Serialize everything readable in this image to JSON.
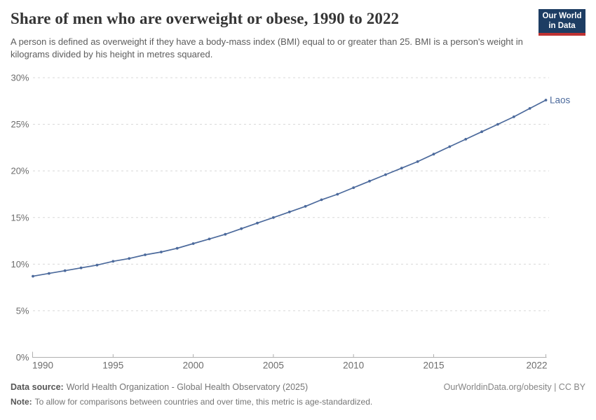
{
  "header": {
    "title": "Share of men who are overweight or obese, 1990 to 2022",
    "subtitle": "A person is defined as overweight if they have a body-mass index (BMI) equal to or greater than 25. BMI is a person's weight in kilograms divided by his height in metres squared."
  },
  "logo": {
    "line1": "Our World",
    "line2": "in Data",
    "bg_color": "#1d3d63",
    "bar_color": "#be3232"
  },
  "chart_data": {
    "type": "line",
    "title": "Share of men who are overweight or obese, 1990 to 2022",
    "xlabel": "",
    "ylabel": "",
    "unit": "%",
    "xlim": [
      1990,
      2022
    ],
    "ylim": [
      0,
      30
    ],
    "grid": "horizontal-dashed",
    "legend_position": "end-of-line-label",
    "x_ticks": [
      1990,
      1995,
      2000,
      2005,
      2010,
      2015,
      2022
    ],
    "y_ticks": [
      0,
      5,
      10,
      15,
      20,
      25,
      30
    ],
    "y_tick_suffix": "%",
    "x": [
      1990,
      1991,
      1992,
      1993,
      1994,
      1995,
      1996,
      1997,
      1998,
      1999,
      2000,
      2001,
      2002,
      2003,
      2004,
      2005,
      2006,
      2007,
      2008,
      2009,
      2010,
      2011,
      2012,
      2013,
      2014,
      2015,
      2016,
      2017,
      2018,
      2019,
      2020,
      2021,
      2022
    ],
    "series": [
      {
        "name": "Laos",
        "color": "#4c6a9c",
        "values": [
          8.7,
          9.0,
          9.3,
          9.6,
          9.9,
          10.3,
          10.6,
          11.0,
          11.3,
          11.7,
          12.2,
          12.7,
          13.2,
          13.8,
          14.4,
          15.0,
          15.6,
          16.2,
          16.9,
          17.5,
          18.2,
          18.9,
          19.6,
          20.3,
          21.0,
          21.8,
          22.6,
          23.4,
          24.2,
          25.0,
          25.8,
          26.7,
          27.6
        ]
      }
    ],
    "grid_color": "#d8d8d8",
    "axis_color": "#afafaf",
    "tick_label_color": "#6d6d6d"
  },
  "footer": {
    "datasource_label": "Data source:",
    "datasource_value": "World Health Organization - Global Health Observatory (2025)",
    "note_label": "Note:",
    "note_value": "To allow for comparisons between countries and over time, this metric is age-standardized.",
    "link": "OurWorldinData.org/obesity | CC BY"
  }
}
